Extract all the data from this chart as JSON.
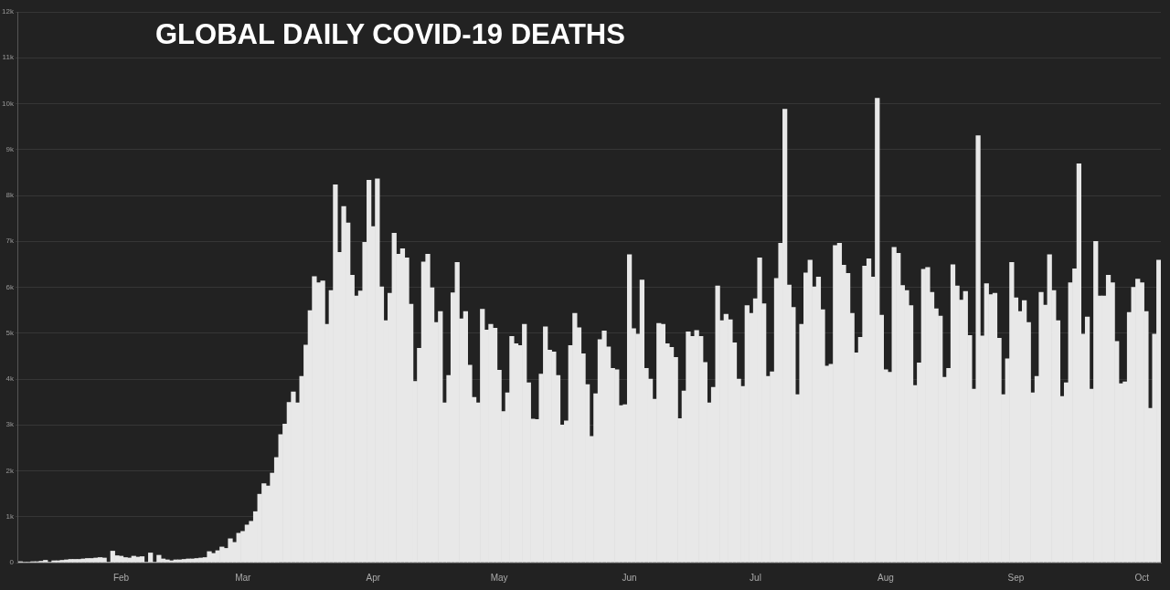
{
  "chart_data": {
    "type": "bar",
    "title": "GLOBAL DAILY COVID-19 DEATHS",
    "color": "#e8e8e8",
    "grid": "y",
    "categories": [
      null,
      null,
      null,
      null,
      null,
      null,
      null,
      null,
      null,
      null,
      null,
      null,
      null,
      null,
      null,
      null,
      null,
      null,
      null,
      null,
      null,
      null,
      null,
      null,
      "Feb",
      null,
      null,
      null,
      null,
      null,
      null,
      null,
      null,
      null,
      null,
      null,
      null,
      null,
      null,
      null,
      null,
      null,
      null,
      null,
      null,
      null,
      null,
      null,
      null,
      null,
      null,
      null,
      null,
      "Mar",
      null,
      null,
      null,
      null,
      null,
      null,
      null,
      null,
      null,
      null,
      null,
      null,
      null,
      null,
      null,
      null,
      null,
      null,
      null,
      null,
      null,
      null,
      null,
      null,
      null,
      null,
      null,
      null,
      null,
      null,
      "Apr",
      null,
      null,
      null,
      null,
      null,
      null,
      null,
      null,
      null,
      null,
      null,
      null,
      null,
      null,
      null,
      null,
      null,
      null,
      null,
      null,
      null,
      null,
      null,
      null,
      null,
      null,
      null,
      null,
      null,
      "May",
      null,
      null,
      null,
      null,
      null,
      null,
      null,
      null,
      null,
      null,
      null,
      null,
      null,
      null,
      null,
      null,
      null,
      null,
      null,
      null,
      null,
      null,
      null,
      null,
      null,
      null,
      null,
      null,
      null,
      null,
      "Jun",
      null,
      null,
      null,
      null,
      null,
      null,
      null,
      null,
      null,
      null,
      null,
      null,
      null,
      null,
      null,
      null,
      null,
      null,
      null,
      null,
      null,
      null,
      null,
      null,
      null,
      null,
      null,
      null,
      null,
      "Jul",
      null,
      null,
      null,
      null,
      null,
      null,
      null,
      null,
      null,
      null,
      null,
      null,
      null,
      null,
      null,
      null,
      null,
      null,
      null,
      null,
      null,
      null,
      null,
      null,
      null,
      null,
      null,
      null,
      null,
      null,
      "Aug",
      null,
      null,
      null,
      null,
      null,
      null,
      null,
      null,
      null,
      null,
      null,
      null,
      null,
      null,
      null,
      null,
      null,
      null,
      null,
      null,
      null,
      null,
      null,
      null,
      null,
      null,
      null,
      null,
      null,
      null,
      "Sep",
      null,
      null,
      null,
      null,
      null,
      null,
      null,
      null,
      null,
      null,
      null,
      null,
      null,
      null,
      null,
      null,
      null,
      null,
      null,
      null,
      null,
      null,
      null,
      null,
      null,
      null,
      null,
      null,
      null,
      "Oct",
      null,
      null,
      null,
      null
    ],
    "values": [
      20,
      10,
      10,
      20,
      20,
      30,
      50,
      10,
      40,
      40,
      50,
      60,
      70,
      70,
      70,
      80,
      90,
      90,
      100,
      110,
      100,
      10,
      250,
      150,
      140,
      110,
      100,
      140,
      120,
      130,
      10,
      210,
      10,
      160,
      80,
      60,
      40,
      60,
      60,
      70,
      80,
      80,
      90,
      100,
      110,
      240,
      200,
      260,
      340,
      310,
      520,
      440,
      640,
      680,
      820,
      900,
      1110,
      1490,
      1720,
      1670,
      1950,
      2290,
      2790,
      3020,
      3490,
      3720,
      3480,
      4060,
      4740,
      5490,
      6230,
      6100,
      6140,
      5190,
      5930,
      8230,
      6760,
      7760,
      7400,
      6260,
      5810,
      5920,
      6980,
      8330,
      7320,
      8360,
      6010,
      5270,
      5870,
      7180,
      6720,
      6840,
      6640,
      5630,
      3950,
      4670,
      6550,
      6720,
      5990,
      5230,
      5470,
      3480,
      4080,
      5880,
      6540,
      5310,
      5470,
      4300,
      3600,
      3480,
      5520,
      5070,
      5190,
      5110,
      4190,
      3290,
      3700,
      4930,
      4770,
      4730,
      5190,
      3920,
      3130,
      3120,
      4110,
      5140,
      4630,
      4590,
      4080,
      3000,
      3090,
      4730,
      5430,
      5120,
      4550,
      3880,
      2750,
      3680,
      4860,
      5050,
      4700,
      4230,
      4200,
      3420,
      3440,
      6710,
      5100,
      4980,
      6160,
      4230,
      4000,
      3560,
      5210,
      5190,
      4770,
      4690,
      4470,
      3140,
      3740,
      5030,
      4930,
      5060,
      4930,
      4360,
      3480,
      3820,
      6030,
      5270,
      5410,
      5290,
      4790,
      4000,
      3840,
      5600,
      5430,
      5750,
      6640,
      5640,
      4060,
      4160,
      6190,
      6960,
      9880,
      6050,
      5560,
      3660,
      5190,
      6310,
      6590,
      6010,
      6220,
      5510,
      4280,
      4320,
      6910,
      6960,
      6480,
      6300,
      5430,
      4570,
      4910,
      6460,
      6620,
      6220,
      10120,
      5390,
      4200,
      4150,
      6870,
      6740,
      6040,
      5930,
      5600,
      3860,
      4350,
      6390,
      6430,
      5890,
      5530,
      5370,
      4040,
      4230,
      6490,
      6030,
      5720,
      5910,
      4950,
      3780,
      9300,
      4940,
      6080,
      5840,
      5870,
      4890,
      3660,
      4440,
      6540,
      5770,
      5470,
      5710,
      5230,
      3700,
      4060,
      5890,
      5610,
      6710,
      5930,
      5270,
      3620,
      3920,
      6100,
      6400,
      8690,
      4980,
      5350,
      3780,
      7000,
      5810,
      5810,
      6260,
      6100,
      4820,
      3900,
      3940,
      5450,
      6000,
      6180,
      6100,
      5470,
      3360,
      4980,
      6590
    ],
    "ylim": [
      0,
      12000
    ],
    "yticks": [
      0,
      {
        "value": 1000,
        "label": "1k"
      },
      {
        "value": 2000,
        "label": "2k"
      },
      {
        "value": 3000,
        "label": "3k"
      },
      {
        "value": 4000,
        "label": "4k"
      },
      {
        "value": 5000,
        "label": "5k"
      },
      {
        "value": 6000,
        "label": "6k"
      },
      {
        "value": 7000,
        "label": "7k"
      },
      {
        "value": 8000,
        "label": "8k"
      },
      {
        "value": 9000,
        "label": "9k"
      },
      {
        "value": 10000,
        "label": "10k"
      },
      {
        "value": 11000,
        "label": "11k"
      },
      {
        "value": 12000,
        "label": "12k"
      }
    ]
  }
}
